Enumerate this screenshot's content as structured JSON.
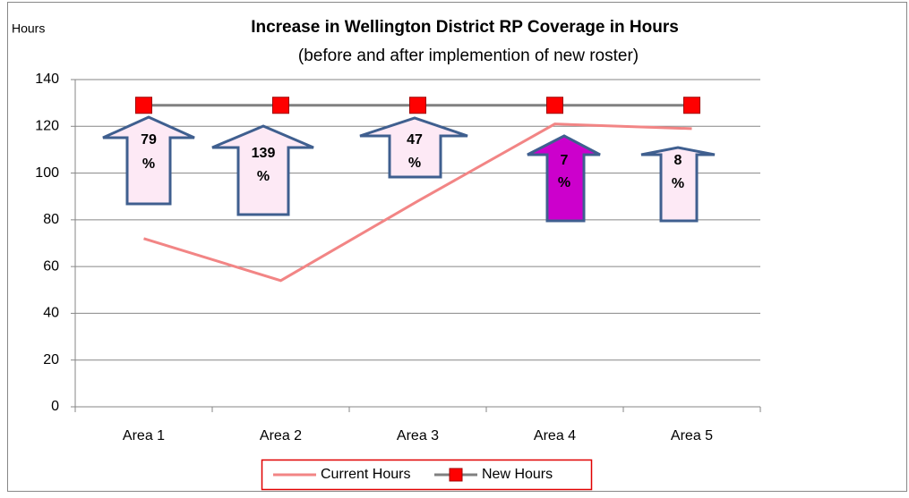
{
  "chart_data": {
    "type": "line",
    "title": "Increase in Wellington District RP Coverage in Hours",
    "subtitle": "(before and after implemention of new roster)",
    "y_label": "Hours",
    "categories": [
      "Area 1",
      "Area 2",
      "Area 3",
      "Area 4",
      "Area 5"
    ],
    "series": [
      {
        "name": "Current Hours",
        "color": "#f28585",
        "values": [
          72,
          54,
          88,
          121,
          119
        ]
      },
      {
        "name": "New Hours",
        "color": "#808080",
        "marker_color": "#ff0000",
        "values": [
          129,
          129,
          129,
          129,
          129
        ]
      }
    ],
    "ylim": [
      0,
      140
    ],
    "yticks": [
      0,
      20,
      40,
      60,
      80,
      100,
      120,
      140
    ],
    "grid": true,
    "legend": "bottom",
    "annotations": [
      {
        "lines": [
          "79",
          "%"
        ],
        "color": "#fde9f5"
      },
      {
        "lines": [
          "139",
          "%"
        ],
        "color": "#fde9f5"
      },
      {
        "lines": [
          "47",
          "%"
        ],
        "color": "#fde9f5"
      },
      {
        "lines": [
          "7",
          "%"
        ],
        "color": "#cc00cc"
      },
      {
        "lines": [
          "8",
          "%"
        ],
        "color": "#fde9f5"
      }
    ]
  }
}
